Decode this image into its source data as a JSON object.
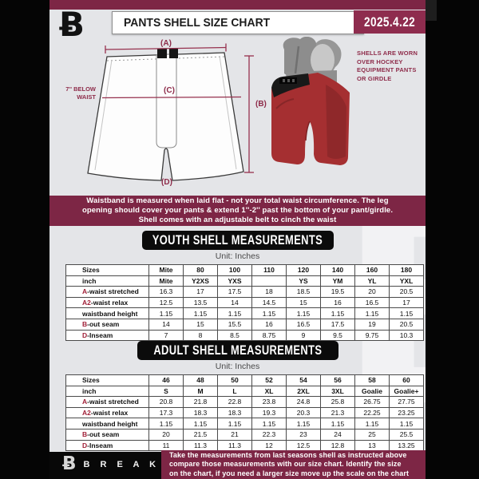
{
  "header": {
    "title": "PANTS SHELL SIZE CHART",
    "date": "2025.4.22"
  },
  "logo_glyph": "Ƀ",
  "watermark": "B",
  "diagram": {
    "label_a": "(A)",
    "label_b": "(B)",
    "label_c": "(C)",
    "label_d": "(D)",
    "waist_note_line1": "7'' BELOW",
    "waist_note_line2": "WAIST",
    "shell_note": "SHELLS ARE WORN\nOVER HOCKEY\nEQUIPMENT PANTS\nOR GIRDLE"
  },
  "banner": {
    "text": "Waistband is measured when laid flat - not your total waist circumference. The leg\nopening should cover your pants & extend 1''-2'' past the bottom of your pant/girdle.\nShell comes with an adjustable belt to cinch the waist"
  },
  "youth": {
    "title": "YOUTH SHELL MEASUREMENTS",
    "unit": "Unit: Inches",
    "header_rows": [
      [
        "Sizes",
        "Mite",
        "80",
        "100",
        "110",
        "120",
        "140",
        "160",
        "180"
      ],
      [
        "inch",
        "Mite",
        "Y2XS",
        "YXS",
        "",
        "YS",
        "YM",
        "YL",
        "YXL"
      ]
    ],
    "rows": [
      {
        "prefix": "A",
        "label": "-waist stretched",
        "values": [
          "16.3",
          "17",
          "17.5",
          "18",
          "18.5",
          "19.5",
          "20",
          "20.5"
        ]
      },
      {
        "prefix": "A2",
        "label": "-waist relax",
        "values": [
          "12.5",
          "13.5",
          "14",
          "14.5",
          "15",
          "16",
          "16.5",
          "17"
        ]
      },
      {
        "prefix": "",
        "label": "waistband height",
        "values": [
          "1.15",
          "1.15",
          "1.15",
          "1.15",
          "1.15",
          "1.15",
          "1.15",
          "1.15"
        ]
      },
      {
        "prefix": "B",
        "label": "-out seam",
        "values": [
          "14",
          "15",
          "15.5",
          "16",
          "16.5",
          "17.5",
          "19",
          "20.5"
        ]
      },
      {
        "prefix": "D",
        "label": "-Inseam",
        "values": [
          "7",
          "8",
          "8.5",
          "8.75",
          "9",
          "9.5",
          "9.75",
          "10.3"
        ]
      }
    ]
  },
  "adult": {
    "title": "ADULT SHELL MEASUREMENTS",
    "unit": "Unit: Inches",
    "header_rows": [
      [
        "Sizes",
        "46",
        "48",
        "50",
        "52",
        "54",
        "56",
        "58",
        "60"
      ],
      [
        "inch",
        "S",
        "M",
        "L",
        "XL",
        "2XL",
        "3XL",
        "Goalie",
        "Goalie+"
      ]
    ],
    "rows": [
      {
        "prefix": "A",
        "label": "-waist stretched",
        "values": [
          "20.8",
          "21.8",
          "22.8",
          "23.8",
          "24.8",
          "25.8",
          "26.75",
          "27.75"
        ]
      },
      {
        "prefix": "A2",
        "label": "-waist relax",
        "values": [
          "17.3",
          "18.3",
          "18.3",
          "19.3",
          "20.3",
          "21.3",
          "22.25",
          "23.25"
        ]
      },
      {
        "prefix": "",
        "label": "waistband height",
        "values": [
          "1.15",
          "1.15",
          "1.15",
          "1.15",
          "1.15",
          "1.15",
          "1.15",
          "1.15"
        ]
      },
      {
        "prefix": "B",
        "label": "-out seam",
        "values": [
          "20",
          "21.5",
          "21",
          "22.3",
          "23",
          "24",
          "25",
          "25.5"
        ]
      },
      {
        "prefix": "D",
        "label": "-Inseam",
        "values": [
          "11",
          "11.3",
          "11.3",
          "12",
          "12.5",
          "12.8",
          "13",
          "13.25"
        ]
      }
    ]
  },
  "footer": {
    "brand": "B R E A K A W A Y",
    "text": "Take the measurements from last seasons shell as instructed above\ncompare those measurements  with our size chart. Identify the size\non the chart, if you need a larger size move up the scale on the chart"
  },
  "colors": {
    "maroon": "#7D2645",
    "date_box": "#8E2C4E",
    "accent_red": "#A02038",
    "background_gray": "#E4E5E8",
    "shell_red": "#A52F31"
  }
}
